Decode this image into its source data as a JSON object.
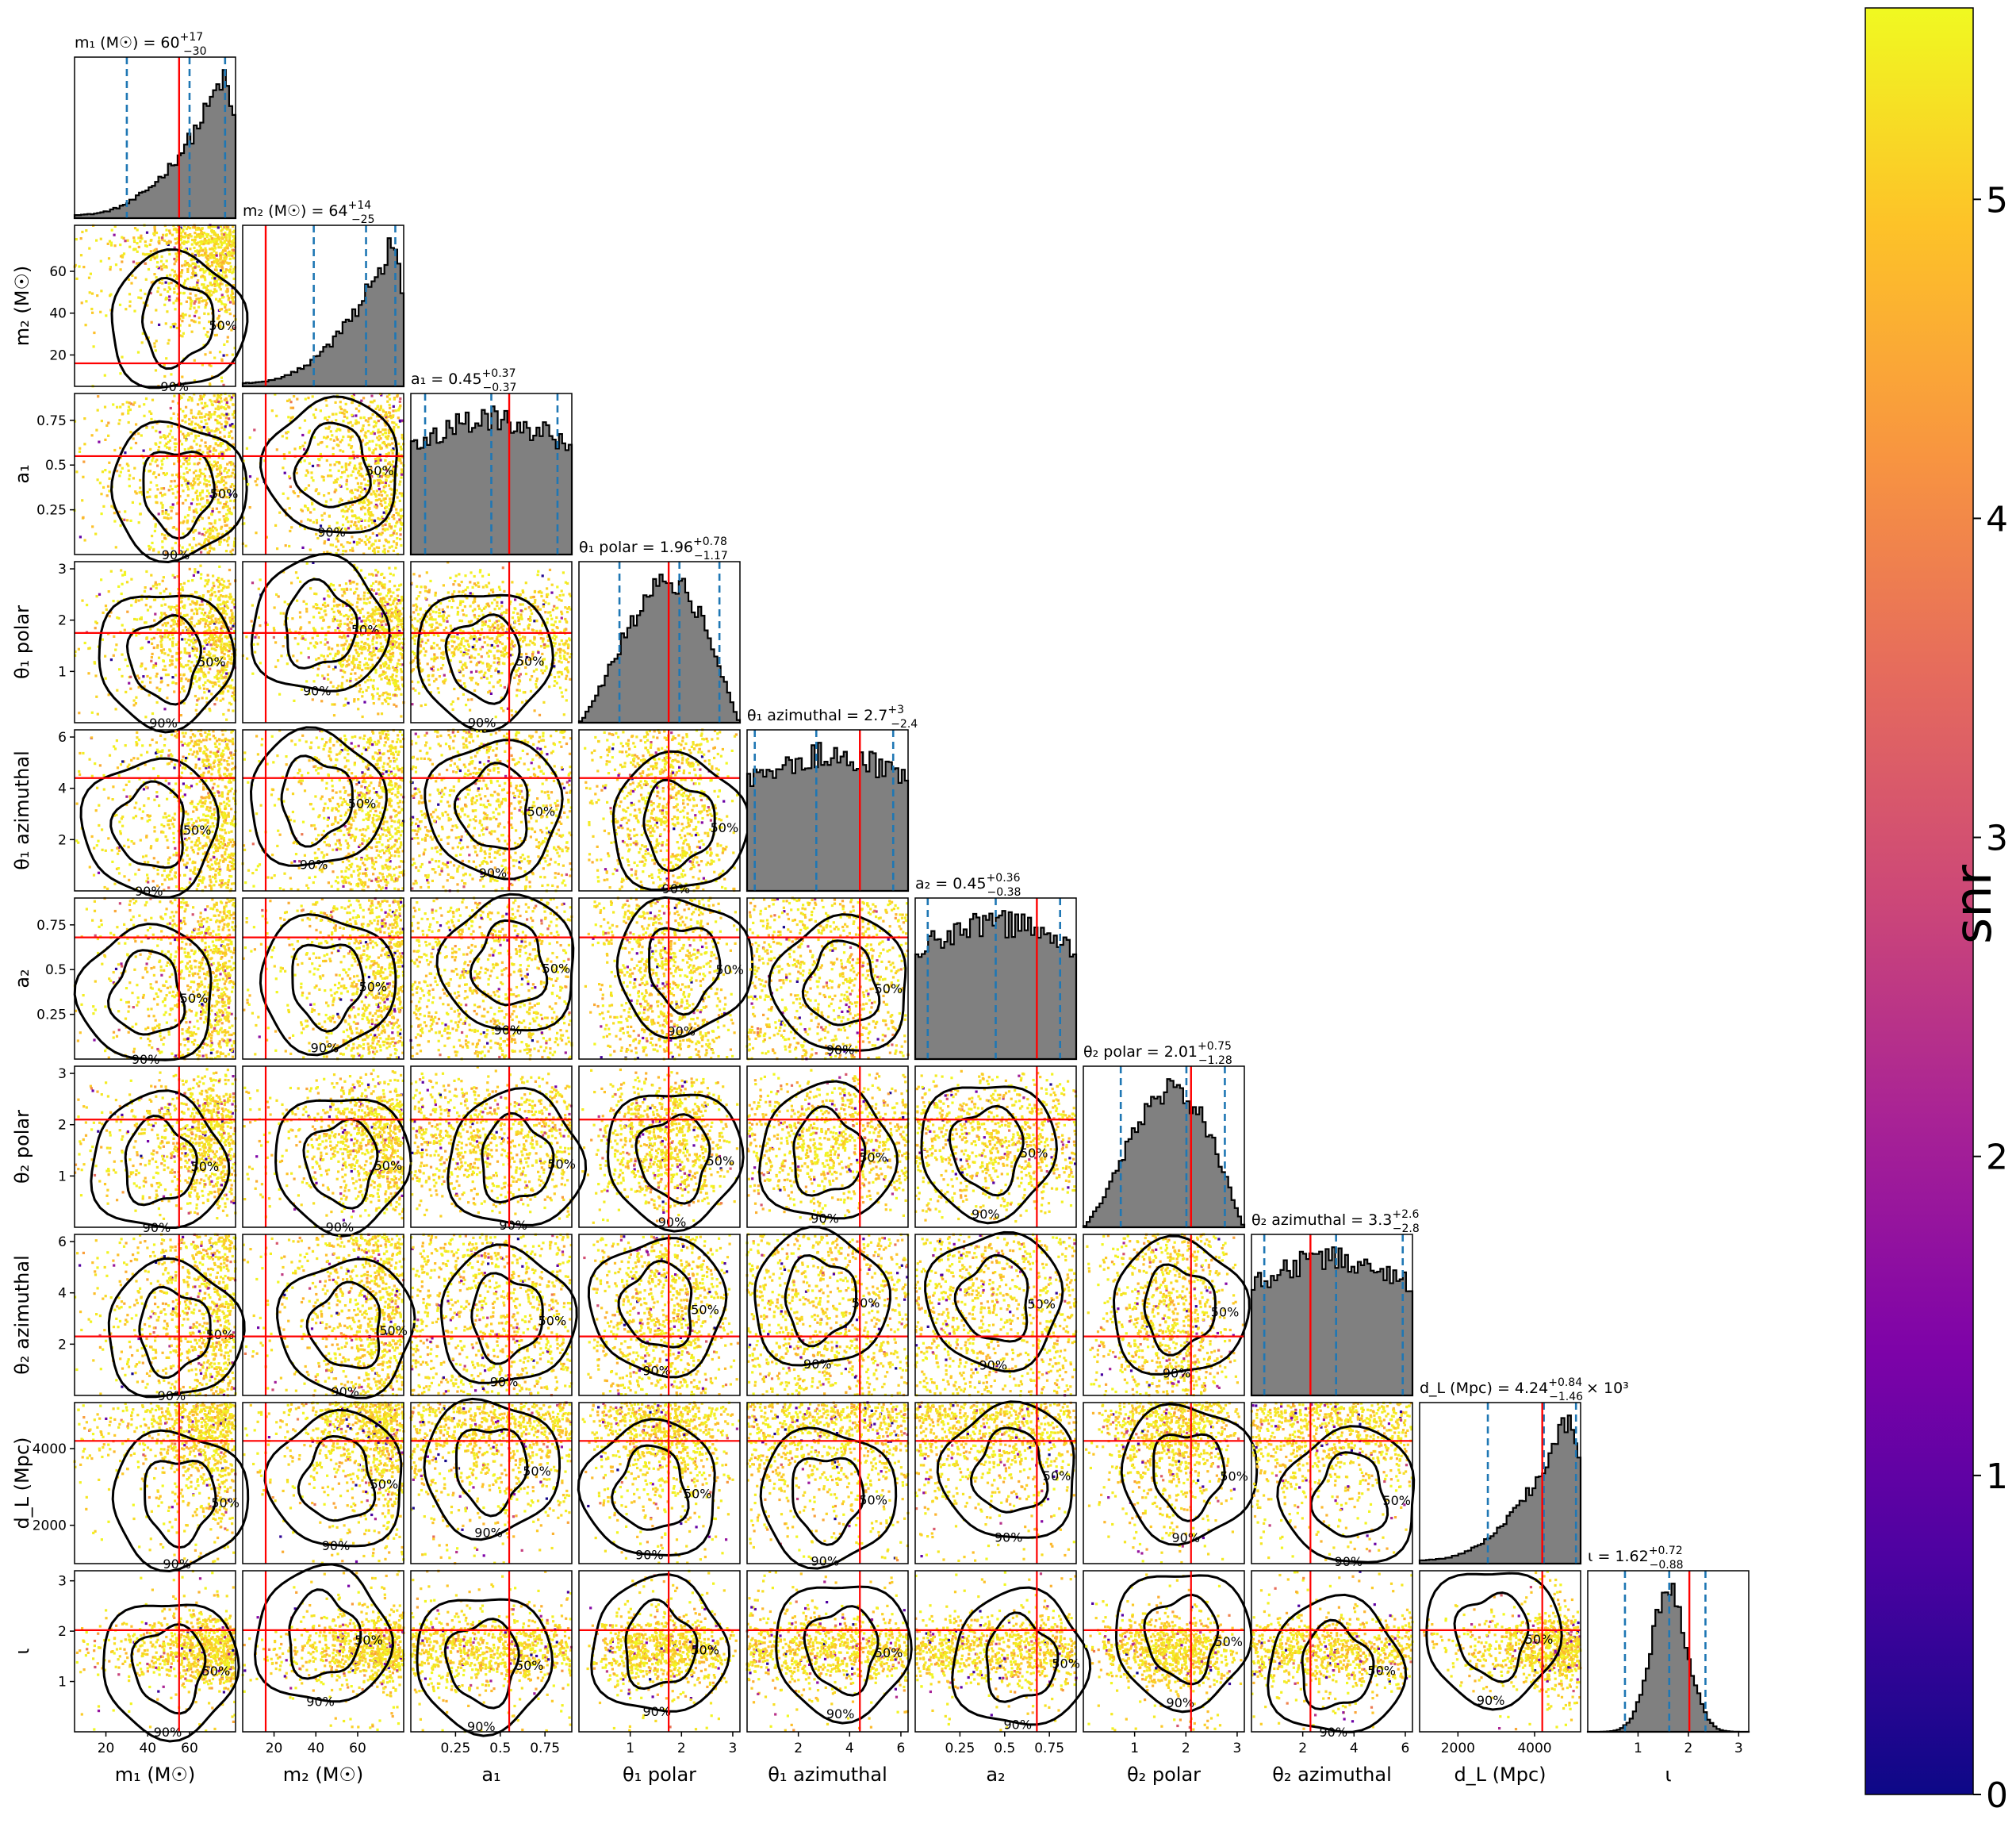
{
  "chart_data": {
    "type": "corner",
    "parameters": [
      {
        "key": "m1",
        "axis_label": "m₁ (M☉)",
        "title": "m₁ (M☉) = 60",
        "median_str": "60",
        "plus": "+17",
        "minus": "−30",
        "range": [
          5,
          82
        ],
        "ticks": [
          20,
          40,
          60
        ],
        "truth": 55,
        "q_lo": 30,
        "q_med": 60,
        "q_hi": 77,
        "shape": "skew_right"
      },
      {
        "key": "m2",
        "axis_label": "m₂ (M☉)",
        "title": "m₂ (M☉) = 64",
        "median_str": "64",
        "plus": "+14",
        "minus": "−25",
        "range": [
          5,
          82
        ],
        "ticks": [
          20,
          40,
          60
        ],
        "truth": 16,
        "q_lo": 39,
        "q_med": 64,
        "q_hi": 78,
        "shape": "skew_right"
      },
      {
        "key": "a1",
        "axis_label": "a₁",
        "title": "a₁ = 0.45",
        "median_str": "0.45",
        "plus": "+0.37",
        "minus": "−0.37",
        "range": [
          0,
          0.9
        ],
        "ticks": [
          0.25,
          0.5,
          0.75
        ],
        "truth": 0.55,
        "q_lo": 0.08,
        "q_med": 0.45,
        "q_hi": 0.82,
        "shape": "flat"
      },
      {
        "key": "theta1_polar",
        "axis_label": "θ₁ polar",
        "title": "θ₁ polar = 1.96",
        "median_str": "1.96",
        "plus": "+0.78",
        "minus": "−1.17",
        "range": [
          0,
          3.14
        ],
        "ticks": [
          1,
          2,
          3
        ],
        "truth": 1.75,
        "q_lo": 0.79,
        "q_med": 1.96,
        "q_hi": 2.74,
        "shape": "sine"
      },
      {
        "key": "theta1_az",
        "axis_label": "θ₁ azimuthal",
        "title": "θ₁ azimuthal = 2.7",
        "median_str": "2.7",
        "plus": "+3",
        "minus": "−2.4",
        "range": [
          0,
          6.28
        ],
        "ticks": [
          2,
          4,
          6
        ],
        "truth": 4.4,
        "q_lo": 0.3,
        "q_med": 2.7,
        "q_hi": 5.7,
        "shape": "flat"
      },
      {
        "key": "a2",
        "axis_label": "a₂",
        "title": "a₂ = 0.45",
        "median_str": "0.45",
        "plus": "+0.36",
        "minus": "−0.38",
        "range": [
          0,
          0.9
        ],
        "ticks": [
          0.25,
          0.5,
          0.75
        ],
        "truth": 0.68,
        "q_lo": 0.07,
        "q_med": 0.45,
        "q_hi": 0.81,
        "shape": "flat"
      },
      {
        "key": "theta2_polar",
        "axis_label": "θ₂ polar",
        "title": "θ₂ polar = 2.01",
        "median_str": "2.01",
        "plus": "+0.75",
        "minus": "−1.28",
        "range": [
          0,
          3.14
        ],
        "ticks": [
          1,
          2,
          3
        ],
        "truth": 2.1,
        "q_lo": 0.73,
        "q_med": 2.01,
        "q_hi": 2.76,
        "shape": "sine"
      },
      {
        "key": "theta2_az",
        "axis_label": "θ₂ azimuthal",
        "title": "θ₂ azimuthal = 3.3",
        "median_str": "3.3",
        "plus": "+2.6",
        "minus": "−2.8",
        "range": [
          0,
          6.28
        ],
        "ticks": [
          2,
          4,
          6
        ],
        "truth": 2.3,
        "q_lo": 0.5,
        "q_med": 3.3,
        "q_hi": 5.9,
        "shape": "flat"
      },
      {
        "key": "dL",
        "axis_label": "d_L (Mpc)",
        "title": "d_L (Mpc) = 4.24",
        "median_str": "4.24",
        "plus": "+0.84",
        "minus": "−1.46",
        "title_suffix": "× 10³",
        "range": [
          1000,
          5200
        ],
        "ticks": [
          2000,
          4000
        ],
        "y_ticks": [
          2000,
          4000
        ],
        "truth": 4200,
        "q_lo": 2780,
        "q_med": 4240,
        "q_hi": 5080,
        "shape": "skew_right"
      },
      {
        "key": "iota",
        "axis_label": "ι",
        "title": "ι = 1.62",
        "median_str": "1.62",
        "plus": "+0.72",
        "minus": "−0.88",
        "range": [
          0,
          3.2
        ],
        "ticks": [
          1,
          2,
          3
        ],
        "truth": 2.02,
        "q_lo": 0.74,
        "q_med": 1.62,
        "q_hi": 2.34,
        "shape": "peaked"
      }
    ],
    "contour_labels": [
      "50%",
      "90%"
    ],
    "colorbar": {
      "label": "snr",
      "min": 0,
      "max": 5.6,
      "ticks": [
        0,
        1,
        2,
        3,
        4,
        5
      ],
      "cmap": "plasma"
    },
    "colors": {
      "truth": "#ff0000",
      "quantile": "#1f77b4",
      "hist_fill": "#808080",
      "contour": "#000000"
    }
  }
}
